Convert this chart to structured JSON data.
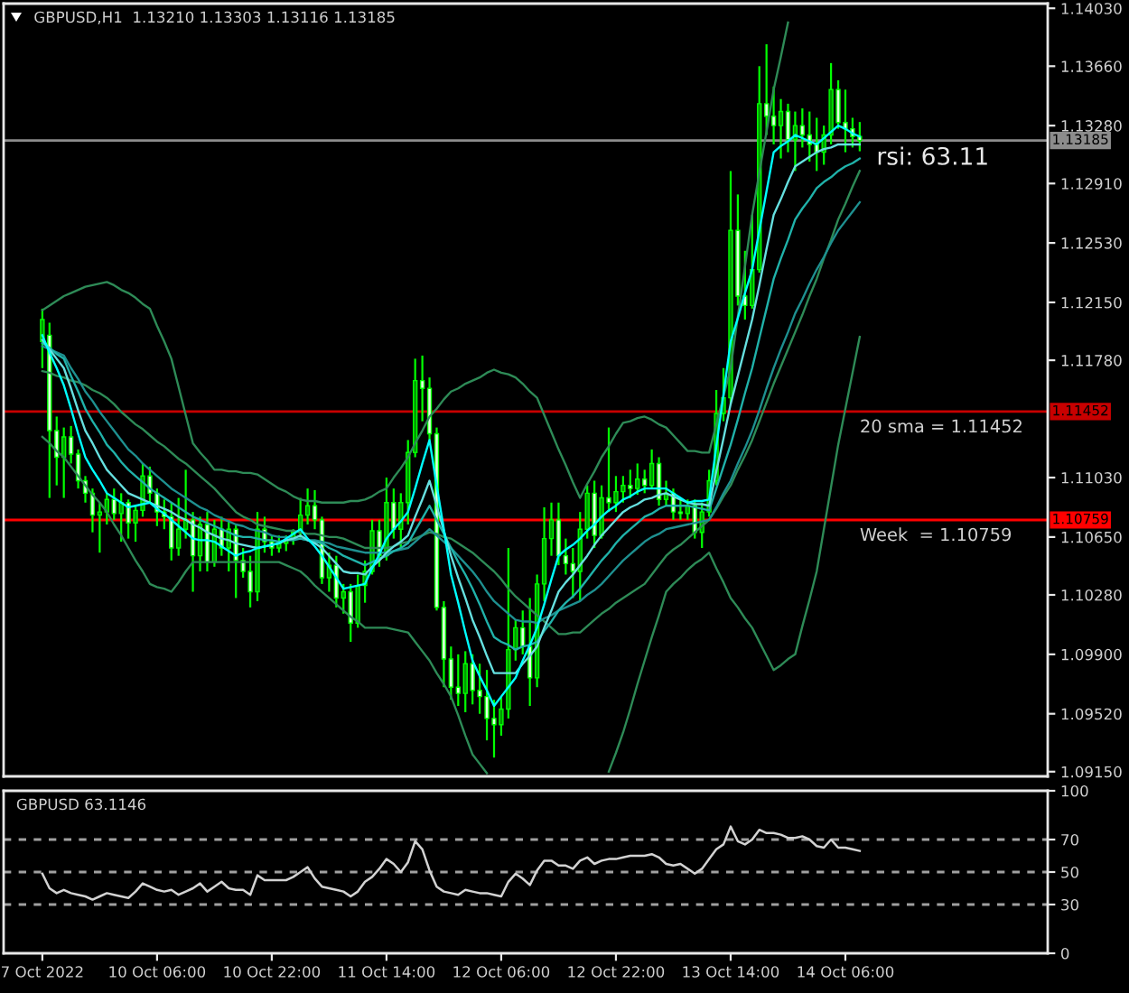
{
  "chart_data": [
    {
      "type": "candlestick",
      "title": "GBPUSD,H1  1.13210 1.13303 1.13116 1.13185",
      "categories": [
        null,
        null,
        null,
        null,
        null,
        null,
        null,
        null,
        null,
        null,
        null,
        null,
        null,
        null,
        null,
        null,
        null,
        null,
        null,
        null,
        null,
        null,
        null,
        null,
        null,
        null,
        null,
        null,
        null,
        null,
        null,
        null,
        null,
        null,
        null,
        null,
        null,
        null,
        null,
        null,
        null,
        null,
        null,
        null,
        null,
        null,
        null,
        null,
        null,
        null,
        null,
        null,
        null,
        null,
        null,
        null,
        null,
        null,
        null,
        null,
        null,
        null,
        null,
        null,
        null,
        null,
        null,
        null,
        null,
        null,
        null,
        null,
        null,
        null,
        null,
        null,
        null,
        null,
        null,
        null,
        null,
        null,
        null,
        null,
        null,
        null,
        null,
        null,
        null,
        null,
        null,
        null,
        null,
        null,
        null,
        null,
        null,
        null,
        null,
        null,
        null,
        null,
        null,
        null,
        null,
        null,
        null,
        null,
        null,
        null,
        null,
        null,
        null,
        null,
        null
      ],
      "ohlc": [
        [
          1.119,
          1.1211,
          1.1173,
          1.1204
        ],
        [
          1.1194,
          1.1202,
          1.109,
          1.1133
        ],
        [
          1.1133,
          1.1142,
          1.1098,
          1.1116
        ],
        [
          1.1116,
          1.1135,
          1.109,
          1.1129
        ],
        [
          1.1129,
          1.1136,
          1.1112,
          1.1118
        ],
        [
          1.1118,
          1.1121,
          1.1096,
          1.1101
        ],
        [
          1.1101,
          1.1104,
          1.1087,
          1.1093
        ],
        [
          1.1093,
          1.1096,
          1.1068,
          1.1079
        ],
        [
          1.1079,
          1.1087,
          1.1055,
          1.1081
        ],
        [
          1.1081,
          1.1093,
          1.1073,
          1.1089
        ],
        [
          1.1089,
          1.1096,
          1.1076,
          1.108
        ],
        [
          1.108,
          1.1093,
          1.1062,
          1.1087
        ],
        [
          1.1087,
          1.1089,
          1.1064,
          1.1074
        ],
        [
          1.1074,
          1.1085,
          1.1062,
          1.1082
        ],
        [
          1.1082,
          1.1112,
          1.1078,
          1.1104
        ],
        [
          1.1104,
          1.111,
          1.1087,
          1.1093
        ],
        [
          1.1093,
          1.1096,
          1.1072,
          1.1081
        ],
        [
          1.1081,
          1.1089,
          1.107,
          1.1078
        ],
        [
          1.1078,
          1.1087,
          1.105,
          1.1058
        ],
        [
          1.1058,
          1.109,
          1.1053,
          1.107
        ],
        [
          1.107,
          1.1108,
          1.1064,
          1.1076
        ],
        [
          1.1076,
          1.1081,
          1.103,
          1.1053
        ],
        [
          1.1053,
          1.1078,
          1.1043,
          1.1073
        ],
        [
          1.1073,
          1.1081,
          1.1043,
          1.1049
        ],
        [
          1.1049,
          1.1076,
          1.1046,
          1.107
        ],
        [
          1.107,
          1.1078,
          1.1053,
          1.1058
        ],
        [
          1.1058,
          1.1076,
          1.1043,
          1.107
        ],
        [
          1.107,
          1.1073,
          1.1026,
          1.105
        ],
        [
          1.105,
          1.1058,
          1.1039,
          1.1043
        ],
        [
          1.1043,
          1.1053,
          1.102,
          1.103
        ],
        [
          1.103,
          1.1081,
          1.1024,
          1.107
        ],
        [
          1.107,
          1.1078,
          1.1055,
          1.1062
        ],
        [
          1.1062,
          1.1066,
          1.1053,
          1.1058
        ],
        [
          1.1058,
          1.1066,
          1.1055,
          1.1061
        ],
        [
          1.1061,
          1.1066,
          1.1056,
          1.1063
        ],
        [
          1.1063,
          1.107,
          1.106,
          1.1068
        ],
        [
          1.1068,
          1.109,
          1.1064,
          1.1079
        ],
        [
          1.1079,
          1.1096,
          1.1073,
          1.1085
        ],
        [
          1.1085,
          1.1095,
          1.107,
          1.1076
        ],
        [
          1.1076,
          1.1078,
          1.1035,
          1.1039
        ],
        [
          1.1039,
          1.1055,
          1.103,
          1.1047
        ],
        [
          1.1047,
          1.1053,
          1.102,
          1.1026
        ],
        [
          1.1026,
          1.1035,
          1.1016,
          1.103
        ],
        [
          1.103,
          1.1035,
          1.0998,
          1.101
        ],
        [
          1.101,
          1.1041,
          1.1007,
          1.1034
        ],
        [
          1.1034,
          1.105,
          1.1023,
          1.1043
        ],
        [
          1.1043,
          1.1076,
          1.1041,
          1.1069
        ],
        [
          1.1069,
          1.1076,
          1.1046,
          1.1053
        ],
        [
          1.1053,
          1.1103,
          1.105,
          1.1087
        ],
        [
          1.1087,
          1.1096,
          1.1064,
          1.107
        ],
        [
          1.107,
          1.1093,
          1.1058,
          1.1087
        ],
        [
          1.1087,
          1.1127,
          1.1073,
          1.1119
        ],
        [
          1.1119,
          1.1179,
          1.1116,
          1.1165
        ],
        [
          1.1165,
          1.1181,
          1.1139,
          1.116
        ],
        [
          1.116,
          1.1167,
          1.1127,
          1.1131
        ],
        [
          1.1131,
          1.1135,
          1.1018,
          1.102
        ],
        [
          1.102,
          1.1024,
          1.0969,
          1.0987
        ],
        [
          1.0987,
          1.0995,
          1.0961,
          1.0969
        ],
        [
          1.0969,
          1.099,
          1.0957,
          1.0965
        ],
        [
          1.0965,
          1.0992,
          1.0953,
          1.0984
        ],
        [
          1.0984,
          1.099,
          1.0958,
          1.0967
        ],
        [
          1.0967,
          1.0984,
          1.0952,
          1.0963
        ],
        [
          1.0963,
          1.098,
          1.0935,
          1.0949
        ],
        [
          1.0949,
          1.0961,
          1.0924,
          1.0945
        ],
        [
          1.0945,
          1.0963,
          1.0938,
          1.0955
        ],
        [
          1.0955,
          1.1058,
          1.0949,
          1.0993
        ],
        [
          1.0993,
          1.1012,
          1.0986,
          1.1007
        ],
        [
          1.1007,
          1.1018,
          1.099,
          1.0995
        ],
        [
          1.0995,
          1.1026,
          1.0957,
          1.0975
        ],
        [
          1.0975,
          1.1041,
          1.0969,
          1.1035
        ],
        [
          1.1035,
          1.1084,
          1.1024,
          1.1064
        ],
        [
          1.1064,
          1.1087,
          1.1053,
          1.1076
        ],
        [
          1.1076,
          1.1087,
          1.1047,
          1.1053
        ],
        [
          1.1053,
          1.1064,
          1.1041,
          1.1048
        ],
        [
          1.1048,
          1.1058,
          1.1026,
          1.1043
        ],
        [
          1.1043,
          1.1081,
          1.1024,
          1.107
        ],
        [
          1.107,
          1.1098,
          1.1064,
          1.1093
        ],
        [
          1.1093,
          1.1101,
          1.1058,
          1.1066
        ],
        [
          1.1066,
          1.1098,
          1.1064,
          1.109
        ],
        [
          1.109,
          1.1135,
          1.1081,
          1.1087
        ],
        [
          1.1087,
          1.1104,
          1.1081,
          1.1094
        ],
        [
          1.1094,
          1.1104,
          1.1087,
          1.1098
        ],
        [
          1.1098,
          1.1108,
          1.109,
          1.1096
        ],
        [
          1.1096,
          1.1112,
          1.1092,
          1.1102
        ],
        [
          1.1102,
          1.1108,
          1.1093,
          1.1098
        ],
        [
          1.1098,
          1.1121,
          1.1096,
          1.1112
        ],
        [
          1.1112,
          1.1116,
          1.1085,
          1.1089
        ],
        [
          1.1089,
          1.1101,
          1.1085,
          1.1093
        ],
        [
          1.1093,
          1.1096,
          1.1076,
          1.1081
        ],
        [
          1.1081,
          1.1089,
          1.1076,
          1.108
        ],
        [
          1.108,
          1.1089,
          1.1076,
          1.1085
        ],
        [
          1.1085,
          1.1089,
          1.1064,
          1.1068
        ],
        [
          1.1068,
          1.1087,
          1.1058,
          1.1081
        ],
        [
          1.1081,
          1.1108,
          1.1078,
          1.1101
        ],
        [
          1.1101,
          1.1159,
          1.1098,
          1.1144
        ],
        [
          1.1144,
          1.1173,
          1.1139,
          1.1154
        ],
        [
          1.1154,
          1.1299,
          1.115,
          1.1261
        ],
        [
          1.1261,
          1.1284,
          1.1213,
          1.1219
        ],
        [
          1.1219,
          1.1248,
          1.1204,
          1.1213
        ],
        [
          1.1213,
          1.1271,
          1.1211,
          1.1236
        ],
        [
          1.1236,
          1.1366,
          1.1234,
          1.1342
        ],
        [
          1.1342,
          1.138,
          1.1322,
          1.1334
        ],
        [
          1.1334,
          1.1353,
          1.1316,
          1.1328
        ],
        [
          1.1328,
          1.1345,
          1.1307,
          1.1337
        ],
        [
          1.1337,
          1.1342,
          1.1311,
          1.1319
        ],
        [
          1.1319,
          1.1337,
          1.1299,
          1.1328
        ],
        [
          1.1328,
          1.1339,
          1.1314,
          1.1322
        ],
        [
          1.1322,
          1.1337,
          1.1305,
          1.1316
        ],
        [
          1.1316,
          1.1333,
          1.1299,
          1.1311
        ],
        [
          1.1311,
          1.1328,
          1.1303,
          1.1322
        ],
        [
          1.1322,
          1.1368,
          1.1316,
          1.1351
        ],
        [
          1.1351,
          1.1357,
          1.1326,
          1.133
        ],
        [
          1.133,
          1.1351,
          1.1311,
          1.1326
        ],
        [
          1.1326,
          1.1333,
          1.1314,
          1.1321
        ],
        [
          1.1321,
          1.13303,
          1.13116,
          1.13185
        ]
      ],
      "color": "#00ff00",
      "colors": [
        "#009a00",
        "#e0ffe0",
        "#e0ffe0",
        "#009a00",
        "#e0ffe0",
        "#e0ffe0",
        "#e0ffe0",
        "#e0ffe0",
        "#009a00",
        "#009a00",
        "#e0ffe0",
        "#009a00",
        "#e0ffe0",
        "#009a00",
        "#009a00",
        "#e0ffe0",
        "#e0ffe0",
        "#e0ffe0",
        "#e0ffe0",
        "#009a00",
        "#009a00",
        "#e0ffe0",
        "#009a00",
        "#e0ffe0",
        "#009a00",
        "#e0ffe0",
        "#009a00",
        "#e0ffe0",
        "#e0ffe0",
        "#e0ffe0",
        "#009a00",
        "#e0ffe0",
        "#e0ffe0",
        "#009a00",
        "#009a00",
        "#009a00",
        "#009a00",
        "#009a00",
        "#e0ffe0",
        "#e0ffe0",
        "#009a00",
        "#e0ffe0",
        "#009a00",
        "#e0ffe0",
        "#009a00",
        "#009a00",
        "#009a00",
        "#e0ffe0",
        "#009a00",
        "#e0ffe0",
        "#009a00",
        "#009a00",
        "#009a00",
        "#e0ffe0",
        "#e0ffe0",
        "#e0ffe0",
        "#e0ffe0",
        "#e0ffe0",
        "#e0ffe0",
        "#009a00",
        "#e0ffe0",
        "#e0ffe0",
        "#e0ffe0",
        "#e0ffe0",
        "#009a00",
        "#009a00",
        "#009a00",
        "#e0ffe0",
        "#e0ffe0",
        "#009a00",
        "#009a00",
        "#009a00",
        "#e0ffe0",
        "#e0ffe0",
        "#e0ffe0",
        "#009a00",
        "#009a00",
        "#e0ffe0",
        "#009a00",
        "#e0ffe0",
        "#009a00",
        "#009a00",
        "#e0ffe0",
        "#009a00",
        "#e0ffe0",
        "#009a00",
        "#e0ffe0",
        "#009a00",
        "#e0ffe0",
        "#e0ffe0",
        "#009a00",
        "#e0ffe0",
        "#009a00",
        "#009a00",
        "#009a00",
        "#009a00",
        "#009a00",
        "#e0ffe0",
        "#e0ffe0",
        "#009a00",
        "#009a00",
        "#e0ffe0",
        "#e0ffe0",
        "#009a00",
        "#e0ffe0",
        "#009a00",
        "#e0ffe0",
        "#e0ffe0",
        "#e0ffe0",
        "#009a00",
        "#009a00",
        "#e0ffe0",
        "#e0ffe0",
        "#e0ffe0",
        "#e0ffe0"
      ],
      "series": [
        {
          "type": "line",
          "color": "#2e8b57",
          "values": [
            1.121,
            1.1213,
            1.1216,
            1.1219,
            1.1221,
            1.1223,
            1.1225,
            1.1226,
            1.1227,
            1.1228,
            1.1226,
            1.1223,
            1.1221,
            1.1218,
            1.1214,
            1.1211,
            1.12,
            1.119,
            1.1179,
            1.1161,
            1.1143,
            1.1125,
            1.1119,
            1.1114,
            1.1108,
            1.1108,
            1.1107,
            1.1107,
            1.1106,
            1.1106,
            1.1105,
            1.1102,
            1.1099,
            1.1096,
            1.1094,
            1.1091,
            1.1089,
            1.1088,
            1.1088,
            1.1087,
            1.1087,
            1.1087,
            1.1087,
            1.1088,
            1.1088,
            1.1089,
            1.1091,
            1.1094,
            1.1096,
            1.1103,
            1.1109,
            1.1116,
            1.1125,
            1.1133,
            1.1142,
            1.1147,
            1.1153,
            1.1158,
            1.116,
            1.1163,
            1.1165,
            1.1167,
            1.117,
            1.1172,
            1.117,
            1.1169,
            1.1167,
            1.1163,
            1.1158,
            1.1154,
            1.1143,
            1.1132,
            1.1121,
            1.1111,
            1.11,
            1.109,
            1.1099,
            1.1107,
            1.1116,
            1.1123,
            1.1131,
            1.1138,
            1.1139,
            1.1141,
            1.1142,
            1.114,
            1.1137,
            1.1135,
            1.113,
            1.1125,
            1.112,
            1.112,
            1.1119,
            1.1119,
            1.1137,
            1.1155,
            1.1173,
            1.1206,
            1.1238,
            1.1271,
            1.1298,
            1.1324,
            1.1351,
            1.1372,
            1.1394,
            null,
            null,
            null,
            null,
            null,
            null,
            null,
            null,
            null,
            null
          ]
        },
        {
          "type": "line",
          "color": "#2e8b57",
          "values": [
            1.1171,
            1.117,
            1.1168,
            1.1167,
            1.1165,
            1.1164,
            1.1162,
            1.1159,
            1.1157,
            1.1154,
            1.115,
            1.1145,
            1.1141,
            1.1137,
            1.1134,
            1.113,
            1.1126,
            1.1123,
            1.1119,
            1.1115,
            1.1112,
            1.1108,
            1.1104,
            1.11,
            1.1096,
            1.1091,
            1.1086,
            1.1081,
            1.1078,
            1.1076,
            1.1073,
            1.1072,
            1.1071,
            1.107,
            1.1069,
            1.1069,
            1.1068,
            1.1067,
            1.1067,
            1.1066,
            1.1065,
            1.1065,
            1.1064,
            1.1062,
            1.106,
            1.1058,
            1.1058,
            1.1058,
            1.1058,
            1.1059,
            1.1061,
            1.1062,
            1.1064,
            1.1066,
            1.1068,
            1.1067,
            1.1065,
            1.1064,
            1.1061,
            1.1058,
            1.1055,
            1.1051,
            1.1047,
            1.1043,
            1.1038,
            1.1032,
            1.1027,
            1.1023,
            1.1019,
            1.1015,
            1.1011,
            1.1007,
            1.1003,
            1.1003,
            1.1004,
            1.1004,
            1.1008,
            1.1012,
            1.1016,
            1.1019,
            1.1023,
            1.1026,
            1.1029,
            1.1032,
            1.1035,
            1.1041,
            1.1047,
            1.1053,
            1.1057,
            1.106,
            1.1064,
            1.1068,
            1.1072,
            1.1076,
            1.1083,
            1.1091,
            1.1098,
            1.1108,
            1.1117,
            1.1127,
            1.1139,
            1.1151,
            1.1163,
            1.1174,
            1.1185,
            1.1196,
            1.1207,
            1.1219,
            1.123,
            1.1243,
            1.1255,
            1.1268,
            1.1278,
            1.1289,
            1.1299
          ]
        },
        {
          "type": "line",
          "color": "#2e8b57",
          "values": [
            1.1129,
            1.1125,
            1.112,
            1.1116,
            1.111,
            1.1104,
            1.1098,
            1.1092,
            1.1087,
            1.1081,
            1.1073,
            1.1066,
            1.1058,
            1.105,
            1.1043,
            1.1035,
            1.1033,
            1.1032,
            1.103,
            1.1036,
            1.1043,
            1.1049,
            1.1049,
            1.1049,
            1.1049,
            1.1049,
            1.1049,
            1.1049,
            1.1049,
            1.1049,
            1.1049,
            1.1049,
            1.1049,
            1.1049,
            1.1047,
            1.1045,
            1.1043,
            1.1039,
            1.1034,
            1.103,
            1.1026,
            1.1022,
            1.1018,
            1.1014,
            1.1011,
            1.1007,
            1.1007,
            1.1007,
            1.1007,
            1.1006,
            1.1005,
            1.1004,
            1.0998,
            1.0992,
            1.0986,
            1.0978,
            1.0971,
            1.0963,
            1.0951,
            1.0938,
            1.0926,
            1.092,
            1.0914,
            null,
            null,
            null,
            null,
            null,
            null,
            null,
            null,
            null,
            null,
            null,
            null,
            null,
            null,
            null,
            null,
            1.0915,
            1.0927,
            1.094,
            1.0955,
            1.0971,
            1.0986,
            1.1001,
            1.1015,
            1.103,
            1.1035,
            1.1039,
            1.1044,
            1.1048,
            1.1051,
            1.1055,
            1.1045,
            1.1036,
            1.1026,
            1.102,
            1.1013,
            1.1007,
            1.0998,
            1.0989,
            1.098,
            1.0983,
            1.0987,
            1.099,
            1.1008,
            1.1025,
            1.1043,
            1.107,
            1.1097,
            1.1124,
            1.1147,
            1.117,
            1.1193
          ]
        },
        {
          "type": "line",
          "color": "#1e9090",
          "values": [
            1.1187,
            1.1185,
            1.1183,
            1.1181,
            1.1173,
            1.1166,
            1.1158,
            1.1152,
            1.1145,
            1.1139,
            1.1133,
            1.1127,
            1.1121,
            1.1117,
            1.1112,
            1.1108,
            1.1104,
            1.11,
            1.1096,
            1.1093,
            1.109,
            1.1087,
            1.1084,
            1.1082,
            1.1079,
            1.1077,
            1.1075,
            1.1073,
            1.1072,
            1.107,
            1.1069,
            1.1068,
            1.1066,
            1.1065,
            1.1065,
            1.1064,
            1.1064,
            1.1063,
            1.1063,
            1.1062,
            1.1061,
            1.1059,
            1.1058,
            1.1057,
            1.1056,
            1.1055,
            1.1055,
            1.1055,
            1.1055,
            1.1056,
            1.1057,
            1.1058,
            1.1062,
            1.1066,
            1.107,
            1.1066,
            1.1062,
            1.1058,
            1.1053,
            1.1048,
            1.1043,
            1.1037,
            1.103,
            1.1024,
            1.102,
            1.1016,
            1.1012,
            1.1011,
            1.1011,
            1.101,
            1.1013,
            1.1015,
            1.1018,
            1.102,
            1.1022,
            1.1024,
            1.1028,
            1.1031,
            1.1035,
            1.104,
            1.1045,
            1.105,
            1.1054,
            1.1058,
            1.1062,
            1.1065,
            1.1067,
            1.107,
            1.1071,
            1.1072,
            1.1073,
            1.1074,
            1.1075,
            1.1076,
            1.1084,
            1.1093,
            1.1101,
            1.1112,
            1.1122,
            1.1133,
            1.1146,
            1.116,
            1.1173,
            1.1185,
            1.1196,
            1.1208,
            1.1217,
            1.1227,
            1.1236,
            1.1244,
            1.1253,
            1.1261,
            1.1267,
            1.1273,
            1.1279
          ]
        },
        {
          "type": "line",
          "color": "#20b2aa",
          "values": [
            1.1189,
            1.1186,
            1.1182,
            1.1179,
            1.1168,
            1.1158,
            1.1147,
            1.1139,
            1.1132,
            1.1124,
            1.1119,
            1.1113,
            1.1108,
            1.1104,
            1.11,
            1.1096,
            1.1093,
            1.109,
            1.1087,
            1.1084,
            1.1081,
            1.1078,
            1.1076,
            1.1074,
            1.1072,
            1.107,
            1.1068,
            1.1066,
            1.1065,
            1.1065,
            1.1064,
            1.1063,
            1.1063,
            1.1062,
            1.1063,
            1.1063,
            1.1064,
            1.1063,
            1.1062,
            1.1061,
            1.1058,
            1.1056,
            1.1053,
            1.1051,
            1.1049,
            1.1047,
            1.1049,
            1.1051,
            1.1053,
            1.1056,
            1.1058,
            1.1061,
            1.1069,
            1.1077,
            1.1085,
            1.1076,
            1.1067,
            1.1058,
            1.1049,
            1.1041,
            1.1032,
            1.1022,
            1.1011,
            1.1001,
            1.0998,
            1.0996,
            1.0993,
            1.0995,
            1.0996,
            1.0998,
            1.1005,
            1.1011,
            1.1018,
            1.1023,
            1.1027,
            1.1032,
            1.1038,
            1.1044,
            1.105,
            1.1055,
            1.1061,
            1.1066,
            1.107,
            1.1074,
            1.1078,
            1.108,
            1.1083,
            1.1085,
            1.1085,
            1.1085,
            1.1085,
            1.1084,
            1.1083,
            1.1082,
            1.1096,
            1.111,
            1.1124,
            1.114,
            1.1157,
            1.1173,
            1.1192,
            1.1211,
            1.123,
            1.1243,
            1.1255,
            1.1268,
            1.1275,
            1.1281,
            1.1288,
            1.1292,
            1.1295,
            1.1299,
            1.1302,
            1.1304,
            1.1307
          ]
        },
        {
          "type": "line",
          "color": "#66e0e0",
          "values": [
            1.1191,
            1.1185,
            1.1179,
            1.1173,
            1.116,
            1.1146,
            1.1133,
            1.1125,
            1.1116,
            1.1108,
            1.1103,
            1.1098,
            1.1093,
            1.1091,
            1.1089,
            1.1087,
            1.1085,
            1.1083,
            1.1081,
            1.1078,
            1.1076,
            1.1073,
            1.1071,
            1.1068,
            1.1066,
            1.1064,
            1.1063,
            1.1061,
            1.106,
            1.1059,
            1.1058,
            1.1059,
            1.106,
            1.1061,
            1.1063,
            1.1064,
            1.1066,
            1.1063,
            1.1061,
            1.1058,
            1.1053,
            1.1048,
            1.1043,
            1.1042,
            1.1042,
            1.1041,
            1.1046,
            1.105,
            1.1055,
            1.1059,
            1.1062,
            1.1066,
            1.1078,
            1.1089,
            1.1101,
            1.1085,
            1.1069,
            1.1053,
            1.1039,
            1.1026,
            1.1012,
            1.1001,
            1.0989,
            1.0978,
            1.0978,
            1.0978,
            1.0978,
            1.0984,
            1.0989,
            1.0995,
            1.1007,
            1.1018,
            1.103,
            1.1036,
            1.1041,
            1.1047,
            1.1053,
            1.106,
            1.1066,
            1.1071,
            1.1076,
            1.1081,
            1.1084,
            1.1086,
            1.1089,
            1.109,
            1.1092,
            1.1093,
            1.1091,
            1.1089,
            1.1087,
            1.1086,
            1.1086,
            1.1085,
            1.1107,
            1.1128,
            1.115,
            1.1168,
            1.1186,
            1.1204,
            1.1226,
            1.1249,
            1.1271,
            1.1281,
            1.1292,
            1.1302,
            1.1305,
            1.1308,
            1.1311,
            1.1313,
            1.1314,
            1.1316,
            1.1316,
            1.1316,
            1.1316
          ]
        },
        {
          "type": "line",
          "color": "#00ffff",
          "values": [
            1.1194,
            1.1183,
            1.1173,
            1.1162,
            1.1147,
            1.1131,
            1.1116,
            1.1108,
            1.1101,
            1.1093,
            1.109,
            1.1087,
            1.1084,
            1.1085,
            1.1086,
            1.1087,
            1.1083,
            1.108,
            1.1076,
            1.1072,
            1.1068,
            1.1064,
            1.1063,
            1.1063,
            1.1062,
            1.1059,
            1.1056,
            1.1053,
            1.1055,
            1.1056,
            1.1058,
            1.1059,
            1.106,
            1.1061,
            1.1064,
            1.1067,
            1.107,
            1.1064,
            1.1059,
            1.1053,
            1.1046,
            1.1039,
            1.1032,
            1.1033,
            1.1034,
            1.1035,
            1.1045,
            1.1054,
            1.1064,
            1.107,
            1.1075,
            1.1081,
            1.1096,
            1.1112,
            1.1127,
            1.1098,
            1.107,
            1.1041,
            1.1023,
            1.1004,
            1.0986,
            1.0976,
            1.0967,
            1.0957,
            1.0963,
            1.0969,
            1.0975,
            1.0986,
            1.0996,
            1.1007,
            1.1022,
            1.1038,
            1.1053,
            1.1057,
            1.106,
            1.1064,
            1.1069,
            1.1073,
            1.1078,
            1.1082,
            1.1085,
            1.1089,
            1.1091,
            1.1094,
            1.1096,
            1.1096,
            1.1096,
            1.1096,
            1.1093,
            1.109,
            1.1087,
            1.1088,
            1.1088,
            1.1089,
            1.1123,
            1.1156,
            1.119,
            1.1205,
            1.1221,
            1.1236,
            1.1261,
            1.1286,
            1.1311,
            1.1315,
            1.1318,
            1.1322,
            1.132,
            1.1318,
            1.1316,
            1.132,
            1.1324,
            1.1328,
            1.1326,
            1.1323,
            1.1321
          ]
        }
      ],
      "ylim": [
        1.0912,
        1.1406
      ],
      "yticks": [
        {
          "value": 1.1403,
          "label": "1.14030"
        },
        {
          "value": 1.1366,
          "label": "1.13660"
        },
        {
          "value": 1.1328,
          "label": "1.13280"
        },
        {
          "value": 1.1291,
          "label": "1.12910"
        },
        {
          "value": 1.1253,
          "label": "1.12530"
        },
        {
          "value": 1.1215,
          "label": "1.12150"
        },
        {
          "value": 1.1178,
          "label": "1.11780"
        },
        {
          "value": 1.1103,
          "label": "1.11030"
        },
        {
          "value": 1.1065,
          "label": "1.10650"
        },
        {
          "value": 1.1028,
          "label": "1.10280"
        },
        {
          "value": 1.099,
          "label": "1.09900"
        },
        {
          "value": 1.0952,
          "label": "1.09520"
        },
        {
          "value": 1.0915,
          "label": "1.09150"
        }
      ],
      "tick_labels": "y",
      "ref_lines": [
        {
          "axis": "y",
          "value": 1.13185,
          "label": "1.13185",
          "color": "#8c8c8c"
        },
        {
          "axis": "y",
          "value": 1.11452,
          "label": "1.11452",
          "color": "#c80000"
        },
        {
          "axis": "y",
          "value": 1.10759,
          "label": "1.10759",
          "color": "#ff0000"
        }
      ],
      "annotations": [
        "rsi: 63.11",
        {
          "text": "20 sma = 1.11452",
          "y": 1.11452
        },
        {
          "text": "Week  = 1.10759",
          "y": 1.10759
        }
      ]
    },
    {
      "type": "line",
      "title": "GBPUSD 63.1146",
      "categories": [
        "7 Oct 2022",
        null,
        null,
        null,
        null,
        null,
        null,
        null,
        null,
        null,
        null,
        null,
        null,
        null,
        null,
        null,
        "10 Oct 06:00",
        null,
        null,
        null,
        null,
        null,
        null,
        null,
        null,
        null,
        null,
        null,
        null,
        null,
        null,
        null,
        "10 Oct 22:00",
        null,
        null,
        null,
        null,
        null,
        null,
        null,
        null,
        null,
        null,
        null,
        null,
        null,
        null,
        null,
        "11 Oct 14:00",
        null,
        null,
        null,
        null,
        null,
        null,
        null,
        null,
        null,
        null,
        null,
        null,
        null,
        null,
        null,
        "12 Oct 06:00",
        null,
        null,
        null,
        null,
        null,
        null,
        null,
        null,
        null,
        null,
        null,
        null,
        null,
        null,
        null,
        "12 Oct 22:00",
        null,
        null,
        null,
        null,
        null,
        null,
        null,
        null,
        null,
        null,
        null,
        null,
        null,
        null,
        null,
        "13 Oct 14:00",
        null,
        null,
        null,
        null,
        null,
        null,
        null,
        null,
        null,
        null,
        null,
        null,
        null,
        null,
        null,
        "14 Oct 06:00",
        null,
        null
      ],
      "values": [
        49,
        40,
        37,
        39,
        37,
        36,
        35,
        33,
        35,
        37,
        36,
        35,
        34,
        38,
        43,
        41,
        39,
        38,
        39,
        36,
        38,
        40,
        43,
        38,
        41,
        44,
        40,
        39,
        39,
        36,
        48,
        45,
        45,
        45,
        45,
        47,
        50,
        53,
        46,
        41,
        40,
        39,
        38,
        35,
        38,
        44,
        47,
        52,
        58,
        55,
        50,
        56,
        69,
        64,
        51,
        41,
        38,
        37,
        36,
        39,
        38,
        37,
        37,
        36,
        35,
        44,
        49,
        46,
        42,
        51,
        57,
        57,
        54,
        54,
        52,
        57,
        59,
        55,
        57,
        58,
        58,
        59,
        60,
        60,
        60,
        61,
        59,
        55,
        54,
        55,
        52,
        49,
        52,
        58,
        64,
        67,
        78,
        69,
        67,
        70,
        76,
        74,
        74,
        73,
        71,
        71,
        72,
        70,
        66,
        65,
        70,
        65,
        65,
        64,
        63
      ],
      "color": "#d2d2d2",
      "ylim": [
        0,
        100
      ],
      "yticks": [
        0,
        30,
        50,
        70,
        100
      ],
      "ref_lines": [
        {
          "axis": "y",
          "value": 70,
          "color": "#a0a0a0",
          "line_style": "dashed"
        },
        {
          "axis": "y",
          "value": 50,
          "color": "#a0a0a0",
          "line_style": "dashed"
        },
        {
          "axis": "y",
          "value": 30,
          "color": "#a0a0a0",
          "line_style": "dashed"
        }
      ]
    }
  ]
}
